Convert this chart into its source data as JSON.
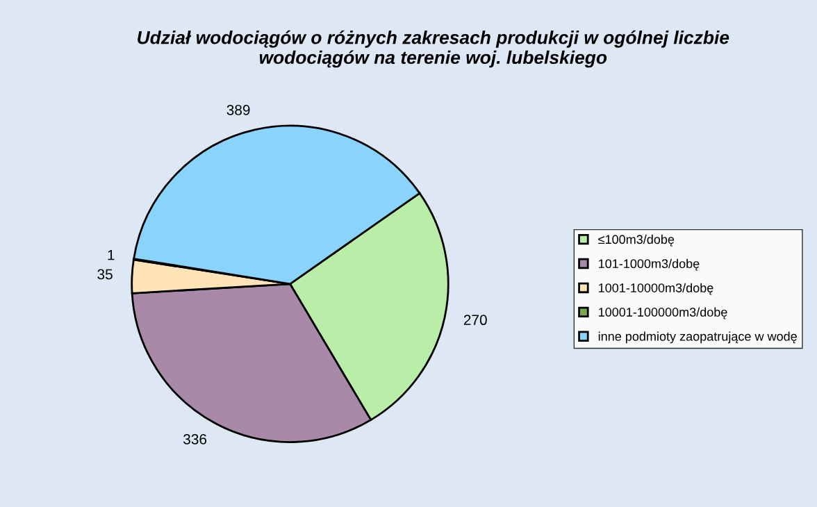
{
  "chart_data": {
    "type": "pie",
    "title": "Udział wodociągów o różnych zakresach produkcji w ogólnej liczbie\nwodociągów na terenie woj. lubelskiego",
    "categories": [
      "≤100m3/dobę",
      "101-1000m3/dobę",
      "1001-10000m3/dobę",
      "10001-100000m3/dobę",
      "inne podmioty zaopatrujące w wodę"
    ],
    "values": [
      270,
      336,
      35,
      1,
      389
    ],
    "colors": [
      "#b8eea8",
      "#a88aa8",
      "#ffe4b8",
      "#7aa850",
      "#8ad4fc"
    ],
    "data_labels": true,
    "legend": "right"
  }
}
